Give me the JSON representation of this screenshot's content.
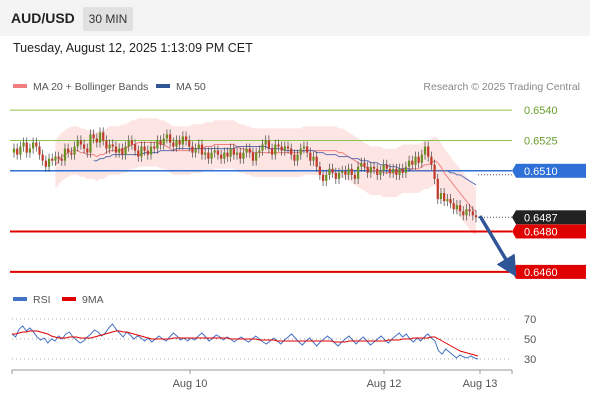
{
  "header": {
    "symbol": "AUD/USD",
    "timeframe": "30 MIN",
    "datetime": "Tuesday, August 12, 2025 1:13:09 PM CET"
  },
  "legend": {
    "items": [
      {
        "label": "MA 20 + Bollinger Bands",
        "color": "#f08080"
      },
      {
        "label": "MA 50",
        "color": "#2f5597"
      }
    ],
    "credit": "Research © 2025 Trading Central"
  },
  "rsi_legend": {
    "items": [
      {
        "label": "RSI",
        "color": "#4472c4"
      },
      {
        "label": "9MA",
        "color": "#e00000"
      }
    ]
  },
  "colors": {
    "resistance": "#2f6fd8",
    "support": "#e00000",
    "target_line": "#8dc34d",
    "arrow": "#2f5597",
    "candle_up": "#6b8e23",
    "candle_down": "#c0392b",
    "ma20": "#f08080",
    "ma50": "#6070b0",
    "bands": "#fde0de",
    "rsi": "#4472c4",
    "rsi_ma": "#e00000"
  },
  "chart_data": {
    "type": "candlestick",
    "price_levels": [
      {
        "value": 0.654,
        "label": "0.6540",
        "kind": "target"
      },
      {
        "value": 0.6525,
        "label": "0.6525",
        "kind": "target"
      },
      {
        "value": 0.651,
        "label": "0.6510",
        "kind": "pivot"
      },
      {
        "value": 0.6487,
        "label": "0.6487",
        "kind": "last"
      },
      {
        "value": 0.648,
        "label": "0.6480",
        "kind": "support"
      },
      {
        "value": 0.646,
        "label": "0.6460",
        "kind": "support"
      }
    ],
    "ylim": [
      0.6455,
      0.6547
    ],
    "x_labels": [
      "Aug 10",
      "Aug 12",
      "Aug 13"
    ],
    "closes": [
      0.6521,
      0.6518,
      0.6522,
      0.6524,
      0.6519,
      0.6521,
      0.6524,
      0.6522,
      0.6518,
      0.6515,
      0.6512,
      0.6516,
      0.6515,
      0.6517,
      0.6516,
      0.6515,
      0.6521,
      0.6519,
      0.6518,
      0.6522,
      0.6525,
      0.6523,
      0.6521,
      0.6519,
      0.6528,
      0.6526,
      0.6524,
      0.6529,
      0.6525,
      0.6521,
      0.6523,
      0.6522,
      0.6519,
      0.6521,
      0.6518,
      0.6522,
      0.6525,
      0.6523,
      0.652,
      0.6517,
      0.6522,
      0.652,
      0.6518,
      0.6522,
      0.6521,
      0.6525,
      0.6523,
      0.6526,
      0.6528,
      0.6524,
      0.6522,
      0.6525,
      0.6523,
      0.6527,
      0.6525,
      0.6522,
      0.6519,
      0.6521,
      0.6523,
      0.6518,
      0.6519,
      0.6516,
      0.6519,
      0.652,
      0.6518,
      0.6516,
      0.6519,
      0.6517,
      0.6521,
      0.6518,
      0.6519,
      0.6516,
      0.6519,
      0.6521,
      0.6519,
      0.6515,
      0.6519,
      0.652,
      0.6523,
      0.6525,
      0.6521,
      0.6518,
      0.6523,
      0.6522,
      0.652,
      0.6522,
      0.6521,
      0.6518,
      0.6515,
      0.6518,
      0.6521,
      0.6522,
      0.6519,
      0.6515,
      0.6517,
      0.6512,
      0.6508,
      0.6505,
      0.6508,
      0.6511,
      0.6509,
      0.6506,
      0.6509,
      0.651,
      0.6508,
      0.6511,
      0.6508,
      0.6506,
      0.6512,
      0.6514,
      0.6512,
      0.6509,
      0.6512,
      0.6511,
      0.6508,
      0.651,
      0.6513,
      0.6511,
      0.6509,
      0.6511,
      0.6508,
      0.6511,
      0.6509,
      0.6512,
      0.6515,
      0.6513,
      0.6517,
      0.6514,
      0.6518,
      0.6522,
      0.6517,
      0.6513,
      0.6506,
      0.6496,
      0.6499,
      0.6495,
      0.6496,
      0.6494,
      0.6491,
      0.6493,
      0.649,
      0.6488,
      0.6491,
      0.649,
      0.6488,
      0.6487
    ],
    "ma20": [
      0.6513,
      0.6515,
      0.6517,
      0.6518,
      0.6519,
      0.652,
      0.652,
      0.652,
      0.6519,
      0.6519,
      0.6518,
      0.6518,
      0.6518,
      0.6517,
      0.6518,
      0.6518,
      0.6519,
      0.652,
      0.652,
      0.652,
      0.652,
      0.6521,
      0.6521,
      0.6522,
      0.6523,
      0.6523,
      0.6524,
      0.6524,
      0.6524,
      0.6524,
      0.6524,
      0.6524,
      0.6524,
      0.6523,
      0.6523,
      0.6522,
      0.6521,
      0.652,
      0.652,
      0.652,
      0.652,
      0.652,
      0.652,
      0.6521,
      0.6521,
      0.6521,
      0.6521,
      0.6522,
      0.6522,
      0.6522,
      0.6523,
      0.6523,
      0.6523,
      0.6523,
      0.6523,
      0.6523,
      0.6523,
      0.6522,
      0.6521,
      0.6521,
      0.652,
      0.652,
      0.6519,
      0.6519,
      0.6519,
      0.6519,
      0.6519,
      0.6519,
      0.6519,
      0.6519,
      0.6519,
      0.6519,
      0.6519,
      0.6519,
      0.6519,
      0.6519,
      0.6519,
      0.6519,
      0.652,
      0.652,
      0.652,
      0.652,
      0.652,
      0.652,
      0.652,
      0.652,
      0.652,
      0.652,
      0.652,
      0.6519,
      0.6519,
      0.6518,
      0.6517,
      0.6516,
      0.6515,
      0.6514,
      0.6513,
      0.6512,
      0.6511,
      0.651,
      0.651,
      0.651,
      0.651,
      0.6509,
      0.6509,
      0.6509,
      0.6509,
      0.6509,
      0.651,
      0.6511,
      0.6511,
      0.6511,
      0.6511,
      0.6511,
      0.6511,
      0.6512,
      0.6513,
      0.6513,
      0.6514,
      0.6515,
      0.6514,
      0.6512,
      0.6509,
      0.6507,
      0.6505,
      0.6503,
      0.6501,
      0.6499,
      0.6497,
      0.6495,
      0.6493,
      0.6491,
      0.649
    ],
    "ma50": [
      0.6515,
      0.6515,
      0.6516,
      0.6516,
      0.6517,
      0.6517,
      0.6518,
      0.6518,
      0.6518,
      0.6518,
      0.6518,
      0.6518,
      0.6518,
      0.6518,
      0.6518,
      0.6518,
      0.6519,
      0.6519,
      0.6519,
      0.6519,
      0.6519,
      0.652,
      0.652,
      0.652,
      0.652,
      0.652,
      0.6521,
      0.6521,
      0.6521,
      0.6521,
      0.6521,
      0.6521,
      0.6521,
      0.6521,
      0.6521,
      0.6521,
      0.6521,
      0.6521,
      0.6521,
      0.6521,
      0.6521,
      0.6521,
      0.6521,
      0.6521,
      0.6521,
      0.6522,
      0.6522,
      0.6522,
      0.6522,
      0.6522,
      0.6522,
      0.6522,
      0.6522,
      0.6522,
      0.6522,
      0.6521,
      0.6521,
      0.6521,
      0.6521,
      0.6521,
      0.652,
      0.652,
      0.652,
      0.652,
      0.652,
      0.652,
      0.652,
      0.652,
      0.652,
      0.652,
      0.6519,
      0.6519,
      0.6519,
      0.6518,
      0.6518,
      0.6518,
      0.6518,
      0.6517,
      0.6517,
      0.6517,
      0.6517,
      0.6516,
      0.6516,
      0.6516,
      0.6515,
      0.6515,
      0.6515,
      0.6514,
      0.6514,
      0.6514,
      0.6513,
      0.6513,
      0.6513,
      0.6512,
      0.6512,
      0.6512,
      0.6511,
      0.6511,
      0.6511,
      0.6511,
      0.651,
      0.651,
      0.651,
      0.651,
      0.651,
      0.651,
      0.651,
      0.651,
      0.651,
      0.651,
      0.651,
      0.651,
      0.6509,
      0.6509,
      0.6508,
      0.6508,
      0.6507,
      0.6506,
      0.6505,
      0.6504,
      0.6503
    ],
    "rsi": {
      "levels": [
        70,
        50,
        30
      ],
      "ylim": [
        25,
        75
      ],
      "values": [
        55,
        52,
        60,
        63,
        58,
        61,
        57,
        52,
        49,
        51,
        46,
        50,
        48,
        53,
        50,
        55,
        57,
        52,
        49,
        46,
        48,
        52,
        55,
        59,
        57,
        53,
        56,
        61,
        65,
        60,
        56,
        52,
        57,
        54,
        50,
        53,
        51,
        48,
        51,
        47,
        50,
        53,
        50,
        48,
        52,
        56,
        53,
        49,
        51,
        48,
        51,
        49,
        53,
        56,
        52,
        48,
        51,
        54,
        52,
        49,
        52,
        50,
        47,
        50,
        52,
        49,
        47,
        50,
        53,
        50,
        47,
        45,
        48,
        51,
        48,
        45,
        49,
        52,
        55,
        51,
        47,
        44,
        48,
        51,
        47,
        43,
        47,
        50,
        53,
        50,
        46,
        43,
        47,
        50,
        53,
        49,
        45,
        49,
        52,
        48,
        44,
        47,
        50,
        53,
        49,
        46,
        50,
        53,
        56,
        52,
        55,
        50,
        47,
        51,
        48,
        52,
        55,
        51,
        48,
        38,
        35,
        40,
        37,
        34,
        31,
        34,
        32,
        31,
        33,
        31,
        30
      ],
      "ma": [
        55,
        55,
        56,
        57,
        57,
        58,
        58,
        58,
        57,
        56,
        55,
        53,
        52,
        51,
        51,
        51,
        52,
        52,
        52,
        51,
        51,
        51,
        51,
        52,
        53,
        54,
        55,
        56,
        57,
        58,
        58,
        57,
        57,
        56,
        55,
        54,
        53,
        52,
        51,
        50,
        50,
        50,
        50,
        50,
        50,
        51,
        51,
        51,
        51,
        51,
        51,
        51,
        51,
        51,
        51,
        51,
        51,
        51,
        51,
        51,
        51,
        50,
        50,
        50,
        50,
        50,
        50,
        50,
        50,
        49,
        49,
        49,
        49,
        49,
        48,
        48,
        48,
        48,
        48,
        48,
        48,
        48,
        48,
        48,
        48,
        48,
        48,
        48,
        48,
        48,
        47,
        47,
        47,
        47,
        48,
        48,
        48,
        48,
        48,
        48,
        48,
        48,
        48,
        48,
        48,
        49,
        49,
        49,
        49,
        50,
        50,
        50,
        51,
        51,
        51,
        51,
        51,
        52,
        52,
        50,
        48,
        46,
        44,
        42,
        40,
        38,
        37,
        36,
        35,
        34,
        33
      ]
    }
  }
}
